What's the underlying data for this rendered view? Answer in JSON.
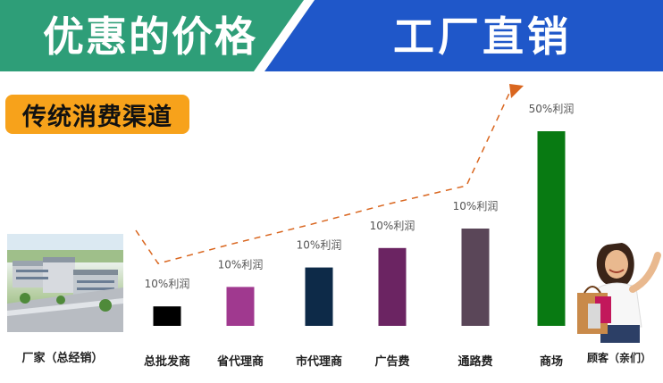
{
  "banner": {
    "left_text": "优惠的价格",
    "right_text": "工厂直销",
    "left_color": "#2e9e78",
    "right_color": "#1f57c9"
  },
  "channel_label": "传统消费渠道",
  "icons": {
    "factory": "factory-photo-icon",
    "customer": "shopper-photo-icon"
  },
  "endpoints": {
    "factory_label": "厂家（总经销）",
    "customer_label": "顾客（亲们）"
  },
  "chart_data": {
    "type": "bar",
    "categories": [
      "总批发商",
      "省代理商",
      "市代理商",
      "广告费",
      "通路费",
      "商场"
    ],
    "values": [
      10,
      20,
      30,
      40,
      50,
      100
    ],
    "data_labels": [
      "10%利润",
      "10%利润",
      "10%利润",
      "10%利润",
      "10%利润",
      "50%利润"
    ],
    "colors": [
      "#000000",
      "#a0398f",
      "#0d2a48",
      "#6b2462",
      "#5a4658",
      "#087a12"
    ],
    "trend_color": "#d9661f",
    "ylim": [
      0,
      100
    ],
    "grid": false,
    "title": "",
    "xlabel": "",
    "ylabel": ""
  }
}
